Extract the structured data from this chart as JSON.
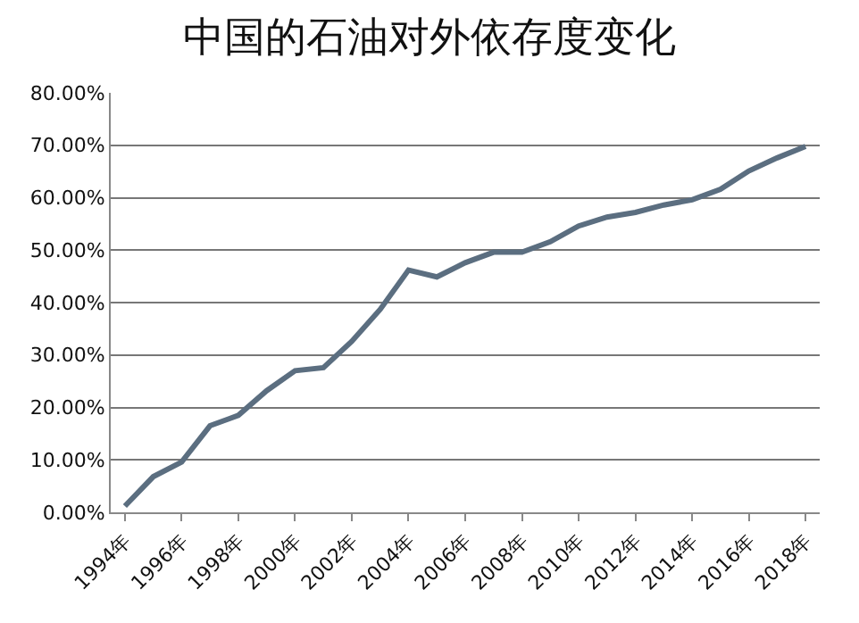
{
  "chart_data": {
    "type": "line",
    "title": "中国的石油对外依存度变化",
    "categories": [
      "1994年",
      null,
      "1996年",
      null,
      "1998年",
      null,
      "2000年",
      null,
      "2002年",
      null,
      "2004年",
      null,
      "2006年",
      null,
      "2008年",
      null,
      "2010年",
      null,
      "2012年",
      null,
      "2014年",
      null,
      "2016年",
      null,
      "2018年"
    ],
    "series": [
      {
        "color": "#5b6e80",
        "values": [
          1.2,
          6.8,
          9.6,
          16.5,
          18.5,
          23.2,
          27.0,
          27.6,
          32.6,
          38.7,
          46.2,
          44.9,
          47.6,
          49.6,
          49.6,
          51.6,
          54.6,
          56.3,
          57.2,
          58.6,
          59.6,
          61.6,
          65.1,
          67.6,
          69.8
        ]
      }
    ],
    "ylim": [
      0,
      80
    ],
    "yticks": [
      {
        "value": 0,
        "label": "0.00%"
      },
      {
        "value": 10,
        "label": "10.00%"
      },
      {
        "value": 20,
        "label": "20.00%"
      },
      {
        "value": 30,
        "label": "30.00%"
      },
      {
        "value": 40,
        "label": "40.00%"
      },
      {
        "value": 50,
        "label": "50.00%"
      },
      {
        "value": 60,
        "label": "60.00%"
      },
      {
        "value": 70,
        "label": "70.00%"
      },
      {
        "value": 80,
        "label": "80.00%"
      }
    ],
    "grid": "y",
    "legend": false,
    "marker": "none",
    "line_style": "solid"
  }
}
